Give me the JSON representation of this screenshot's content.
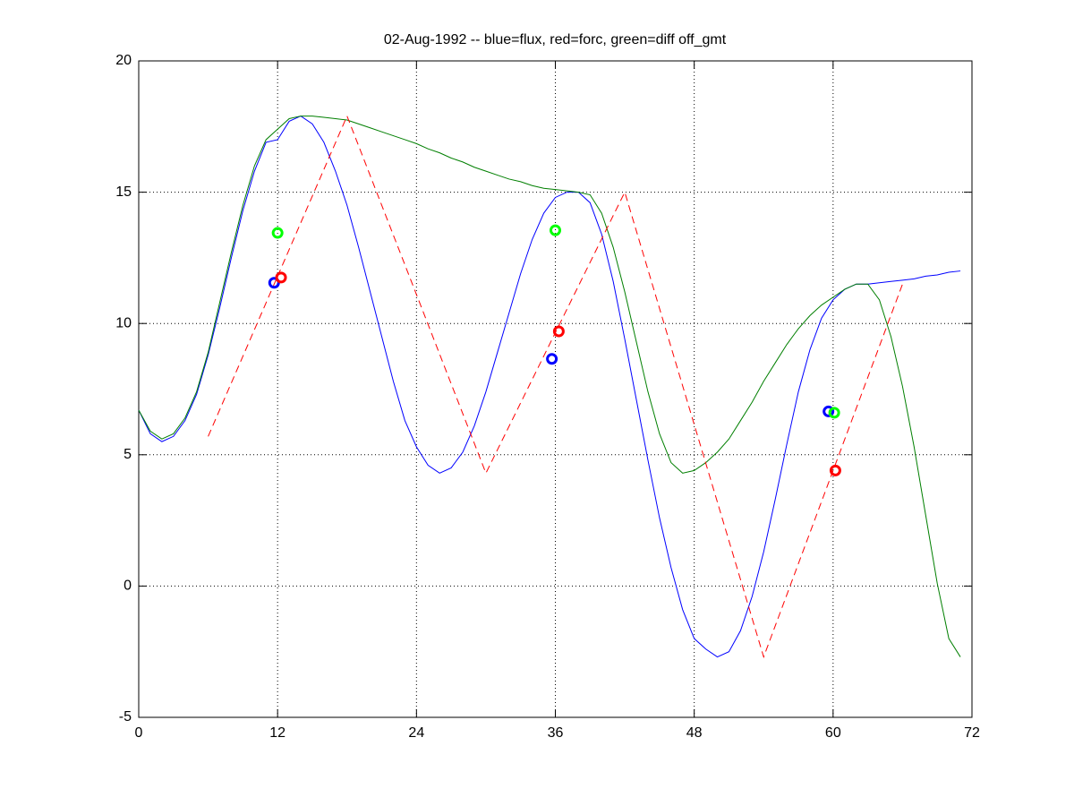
{
  "chart_data": {
    "type": "line",
    "title": "02-Aug-1992 -- blue=flux, red=forc, green=diff off_gmt",
    "xlim": [
      0,
      72
    ],
    "xticks": [
      0,
      12,
      24,
      36,
      48,
      60,
      72
    ],
    "ylim": [
      -5,
      20
    ],
    "yticks": [
      -5,
      0,
      5,
      10,
      15,
      20
    ],
    "grid": true,
    "series": [
      {
        "color": "#0000ff",
        "style": "solid",
        "x": [
          0,
          1,
          2,
          3,
          4,
          5,
          6,
          7,
          8,
          9,
          10,
          11,
          12,
          13,
          14,
          15,
          16,
          17,
          18,
          19,
          20,
          21,
          22,
          23,
          24,
          25,
          26,
          27,
          28,
          29,
          30,
          31,
          32,
          33,
          34,
          35,
          36,
          37,
          38,
          39,
          40,
          41,
          42,
          43,
          44,
          45,
          46,
          47,
          48,
          49,
          50,
          51,
          52,
          53,
          54,
          55,
          56,
          57,
          58,
          59,
          60,
          61,
          62,
          63,
          64,
          65,
          66,
          67,
          68,
          69,
          70,
          71
        ],
        "values": [
          6.7,
          5.8,
          5.5,
          5.7,
          6.3,
          7.3,
          8.8,
          10.6,
          12.5,
          14.3,
          15.8,
          16.9,
          17.0,
          17.7,
          17.9,
          17.6,
          16.9,
          15.8,
          14.5,
          12.9,
          11.2,
          9.5,
          7.8,
          6.3,
          5.3,
          4.6,
          4.3,
          4.5,
          5.1,
          6.1,
          7.4,
          8.9,
          10.4,
          11.9,
          13.2,
          14.2,
          14.8,
          15.0,
          15.0,
          14.6,
          13.4,
          11.6,
          9.4,
          7.1,
          4.8,
          2.6,
          0.7,
          -0.9,
          -2.0,
          -2.4,
          -2.7,
          -2.5,
          -1.7,
          -0.4,
          1.3,
          3.3,
          5.4,
          7.4,
          9.0,
          10.2,
          10.9,
          11.3,
          11.5,
          11.5,
          11.55,
          11.6,
          11.65,
          11.7,
          11.8,
          11.85,
          11.95,
          12.0
        ]
      },
      {
        "color": "#007f00",
        "style": "solid",
        "x": [
          0,
          1,
          2,
          3,
          4,
          5,
          6,
          7,
          8,
          9,
          10,
          11,
          12,
          13,
          14,
          15,
          16,
          17,
          18,
          19,
          20,
          21,
          22,
          23,
          24,
          25,
          26,
          27,
          28,
          29,
          30,
          31,
          32,
          33,
          34,
          35,
          36,
          37,
          38,
          39,
          40,
          41,
          42,
          43,
          44,
          45,
          46,
          47,
          48,
          49,
          50,
          51,
          52,
          53,
          54,
          55,
          56,
          57,
          58,
          59,
          60,
          61,
          62,
          63,
          64,
          65,
          66,
          67,
          68,
          69,
          70,
          71
        ],
        "values": [
          6.7,
          5.9,
          5.6,
          5.8,
          6.4,
          7.4,
          8.9,
          10.8,
          12.7,
          14.5,
          16.0,
          17.0,
          17.4,
          17.8,
          17.9,
          17.9,
          17.85,
          17.8,
          17.75,
          17.6,
          17.45,
          17.3,
          17.15,
          17.0,
          16.85,
          16.65,
          16.5,
          16.3,
          16.15,
          15.95,
          15.8,
          15.65,
          15.5,
          15.4,
          15.25,
          15.15,
          15.1,
          15.05,
          15.0,
          14.9,
          14.2,
          12.9,
          11.2,
          9.3,
          7.4,
          5.8,
          4.7,
          4.3,
          4.4,
          4.7,
          5.1,
          5.6,
          6.3,
          7.0,
          7.8,
          8.5,
          9.2,
          9.8,
          10.3,
          10.7,
          11.0,
          11.3,
          11.5,
          11.5,
          10.9,
          9.5,
          7.6,
          5.3,
          2.7,
          0.1,
          -2.0,
          -2.7
        ]
      },
      {
        "color": "#ff0000",
        "style": "dashed",
        "x": [
          6,
          18,
          30,
          42,
          54,
          66
        ],
        "values": [
          5.7,
          17.9,
          4.3,
          15.0,
          -2.7,
          11.5
        ]
      },
      {
        "color": "#0000ff",
        "style": "marker",
        "x": [
          11.7,
          35.7,
          59.6
        ],
        "values": [
          11.55,
          8.65,
          6.65
        ]
      },
      {
        "color": "#ff0000",
        "style": "marker",
        "x": [
          12.3,
          36.3,
          60.2
        ],
        "values": [
          11.75,
          9.7,
          4.4
        ]
      },
      {
        "color": "#00ff00",
        "style": "marker",
        "x": [
          12.0,
          36.0,
          60.1
        ],
        "values": [
          13.45,
          13.55,
          6.6
        ]
      }
    ]
  }
}
